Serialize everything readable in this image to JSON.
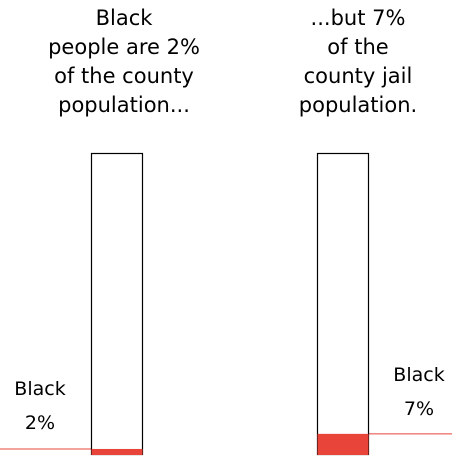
{
  "chart_data": {
    "type": "bar",
    "categories": [
      "County population",
      "County jail population"
    ],
    "series": [
      {
        "name": "Black",
        "values": [
          2,
          7
        ]
      }
    ],
    "ylim": [
      0,
      100
    ],
    "headings": [
      [
        "Black",
        "people are 2%",
        "of the county",
        "population..."
      ],
      [
        "...but 7%",
        "of the",
        "county jail",
        "population."
      ]
    ],
    "callouts": [
      [
        "Black",
        "2%"
      ],
      [
        "Black",
        "7%"
      ]
    ],
    "colors": {
      "fill": "#e8443a",
      "outline": "#000000",
      "leader": "#e8443a"
    }
  }
}
